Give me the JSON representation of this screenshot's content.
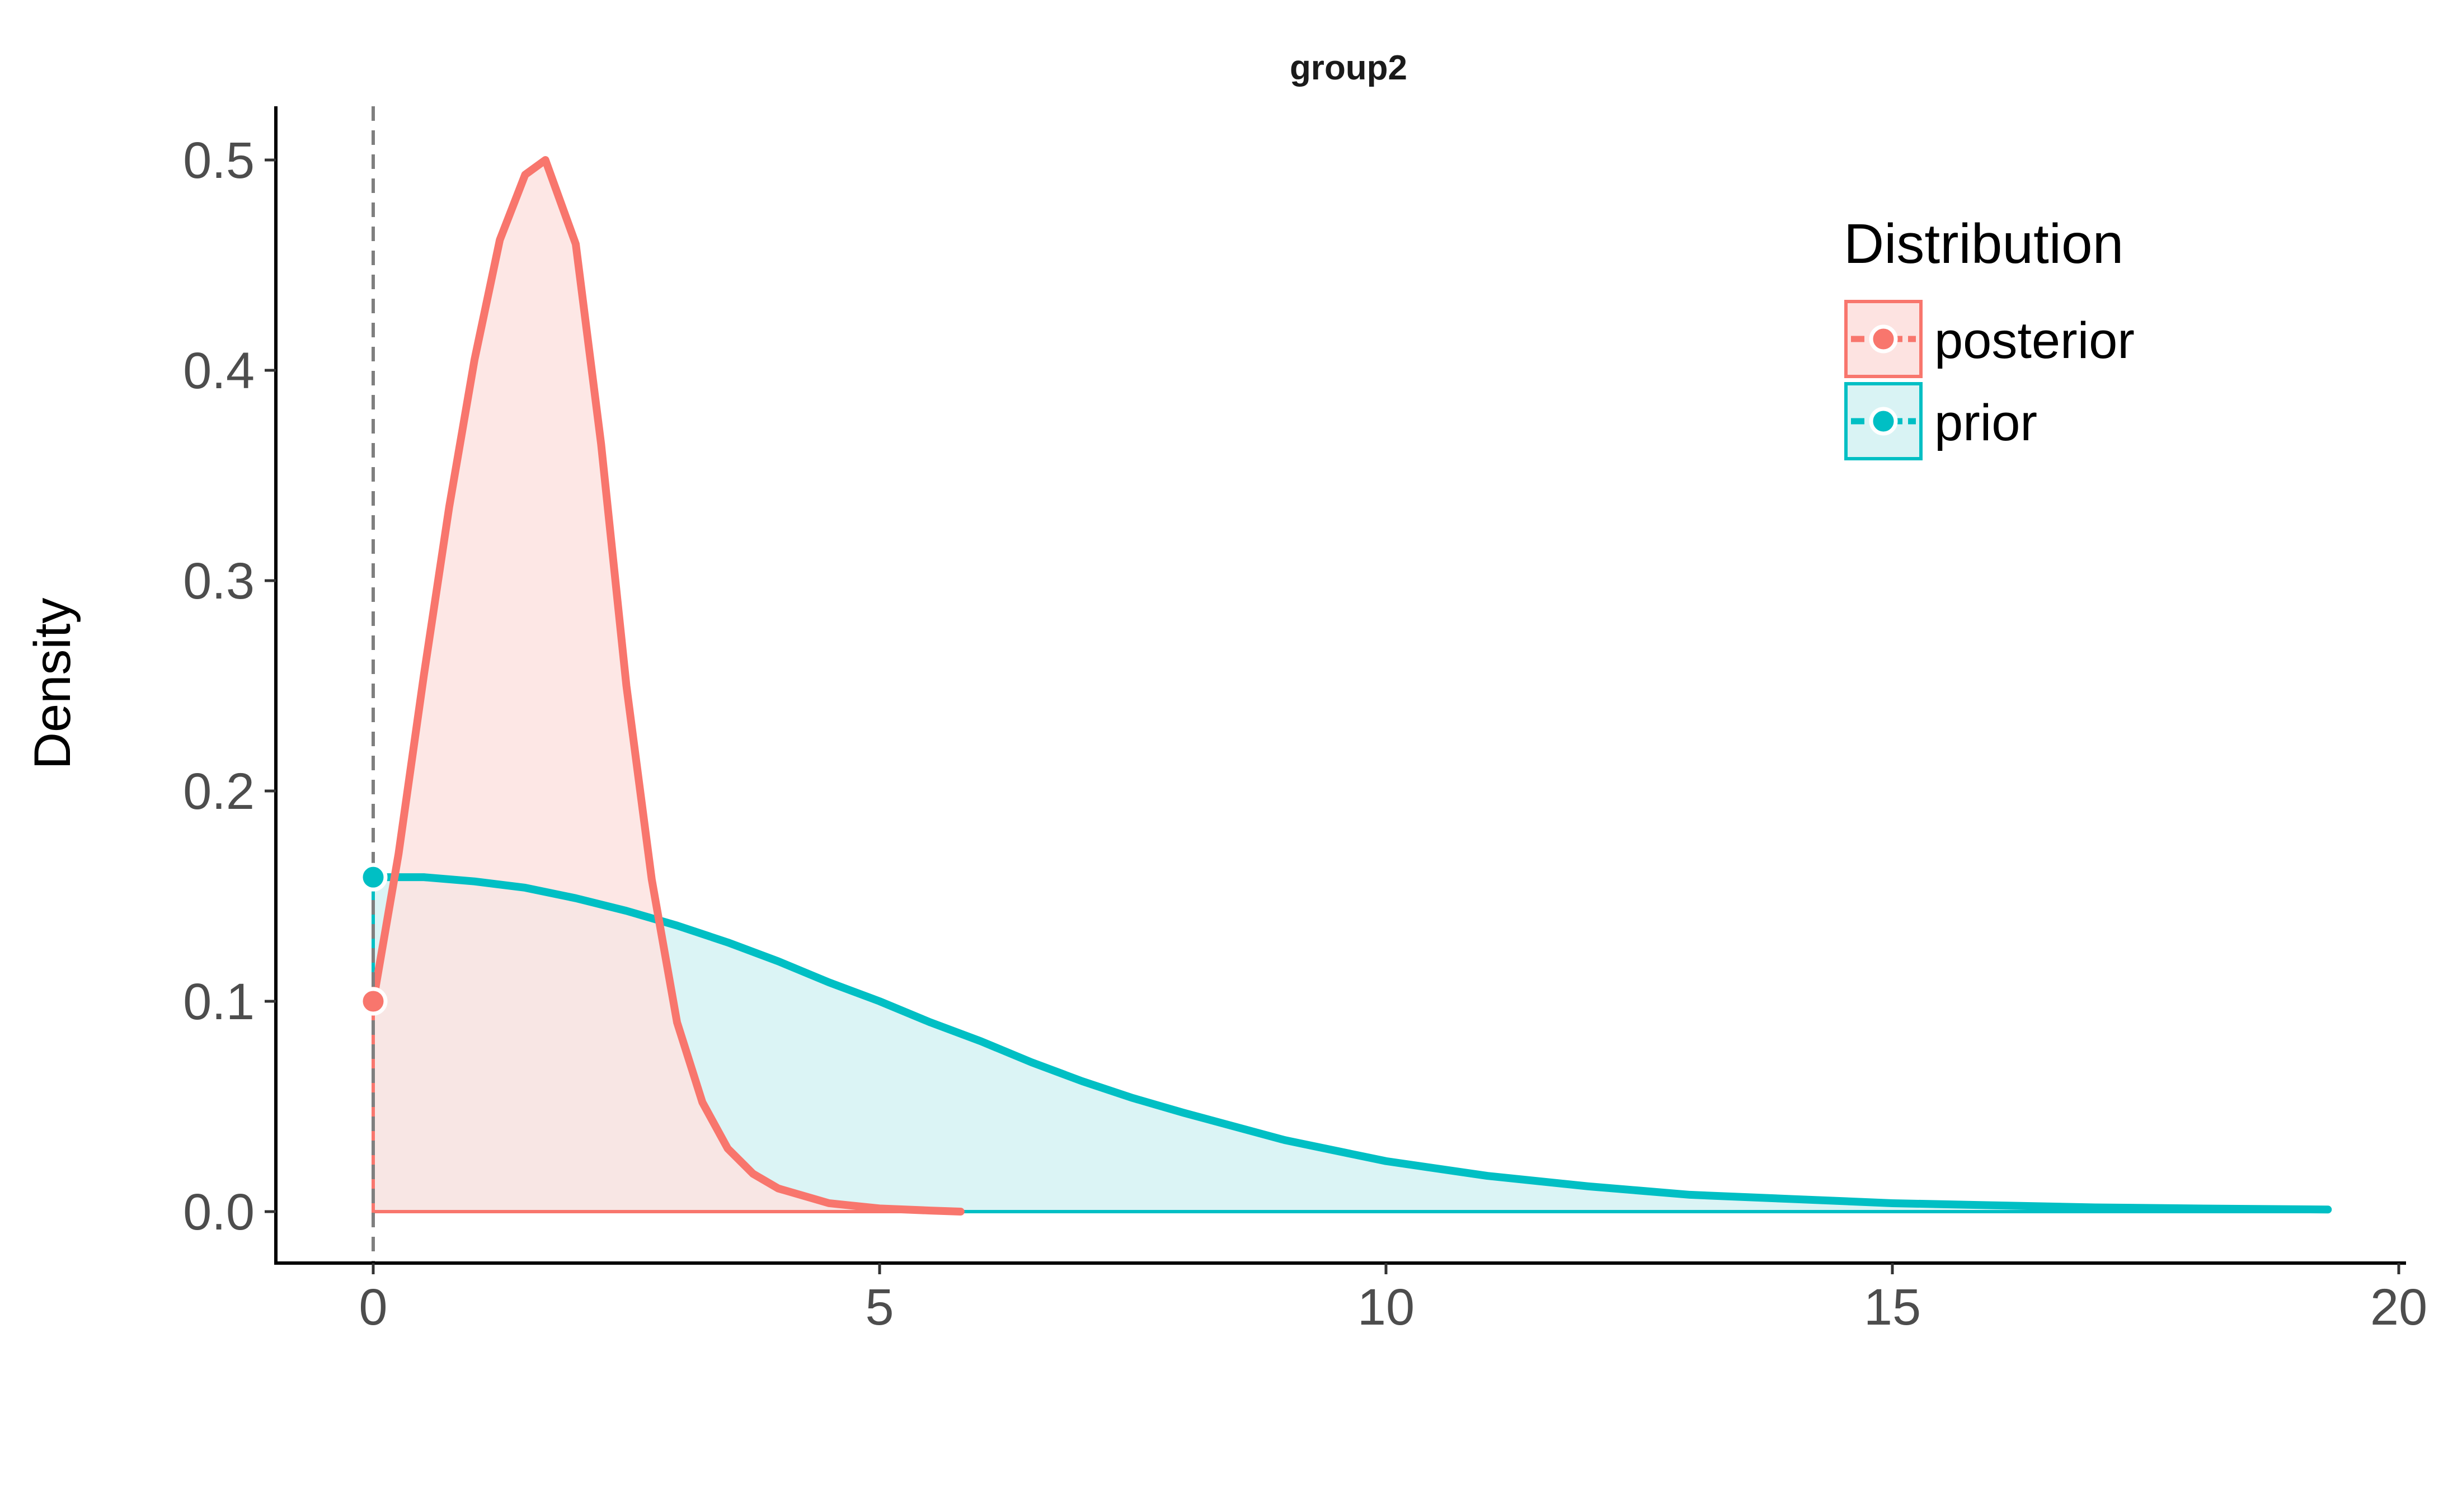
{
  "chart_data": {
    "type": "area",
    "title": "group2",
    "xlabel": "",
    "ylabel": "Density",
    "xlim": [
      -0.95,
      20.3
    ],
    "ylim": [
      -0.025,
      0.525
    ],
    "x_ticks": [
      "0",
      "5",
      "10",
      "15",
      "20"
    ],
    "y_ticks": [
      "0.0",
      "0.1",
      "0.2",
      "0.3",
      "0.4",
      "0.5"
    ],
    "grid": false,
    "reference_line": {
      "x": 0,
      "style": "dashed",
      "color": "#7f7f7f"
    },
    "legend": {
      "title": "Distribution",
      "position": "top-right",
      "entries": [
        "posterior",
        "prior"
      ]
    },
    "series": [
      {
        "name": "posterior",
        "color": "#F8766D",
        "fill": "#FDE3E1",
        "x": [
          0.0,
          0.25,
          0.5,
          0.75,
          1.0,
          1.25,
          1.5,
          1.7,
          2.0,
          2.25,
          2.5,
          2.75,
          3.0,
          3.25,
          3.5,
          3.75,
          4.0,
          4.5,
          5.0,
          5.5,
          5.8
        ],
        "y": [
          0.1,
          0.17,
          0.255,
          0.335,
          0.405,
          0.462,
          0.493,
          0.5,
          0.46,
          0.365,
          0.25,
          0.158,
          0.09,
          0.052,
          0.03,
          0.018,
          0.011,
          0.004,
          0.0015,
          0.0005,
          0.0
        ]
      },
      {
        "name": "prior",
        "color": "#00BFC4",
        "fill": "#D9F3F4",
        "x": [
          0.0,
          0.5,
          1.0,
          1.5,
          2.0,
          2.5,
          3.0,
          3.5,
          4.0,
          4.5,
          5.0,
          5.5,
          6.0,
          6.5,
          7.0,
          7.5,
          8.0,
          9.0,
          10.0,
          11.0,
          12.0,
          13.0,
          14.0,
          15.0,
          16.0,
          17.0,
          18.0,
          19.3
        ],
        "y": [
          0.159,
          0.159,
          0.157,
          0.154,
          0.149,
          0.143,
          0.136,
          0.128,
          0.119,
          0.109,
          0.1,
          0.09,
          0.081,
          0.071,
          0.062,
          0.054,
          0.047,
          0.034,
          0.024,
          0.017,
          0.012,
          0.008,
          0.006,
          0.004,
          0.003,
          0.002,
          0.0015,
          0.001
        ]
      }
    ],
    "points_at_zero": [
      {
        "series": "posterior",
        "x": 0,
        "y": 0.1
      },
      {
        "series": "prior",
        "x": 0,
        "y": 0.159
      }
    ]
  }
}
